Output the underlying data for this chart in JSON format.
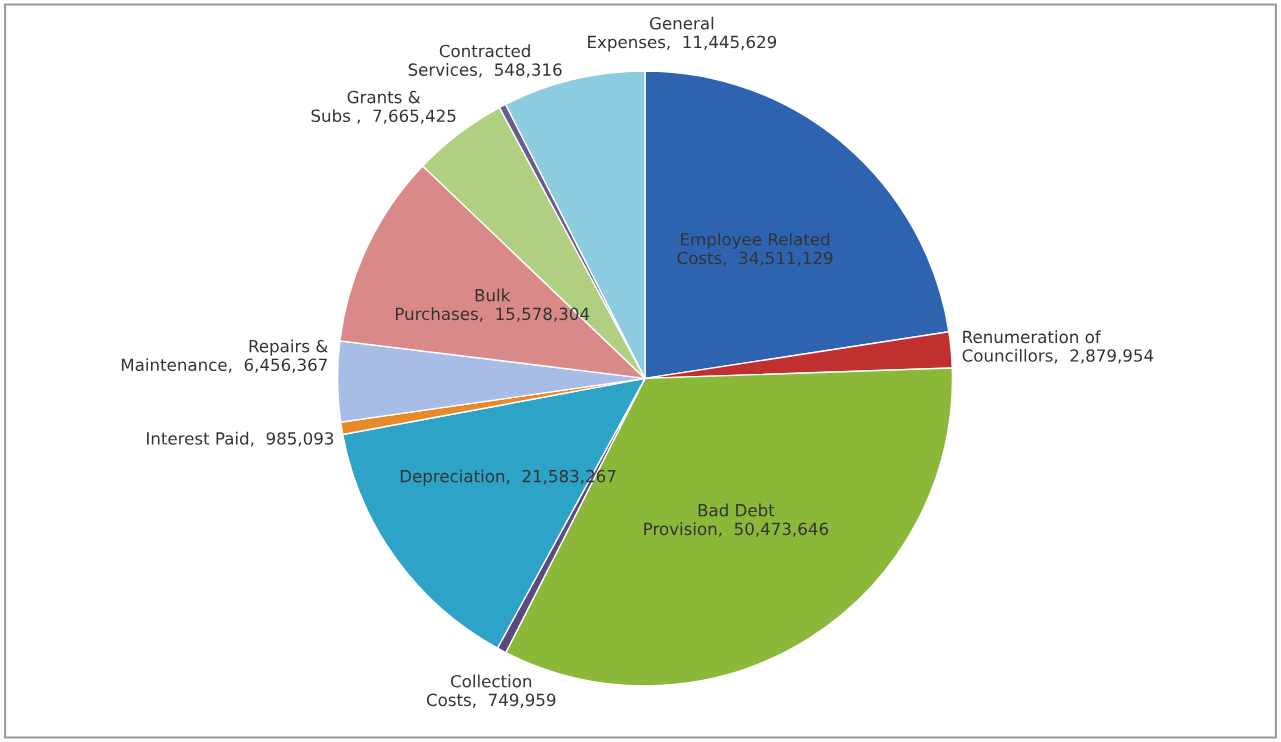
{
  "chart_data": {
    "type": "pie",
    "categories": [
      "Employee Related Costs",
      "Renumeration of Councillors",
      "Bad Debt Provision",
      "Collection Costs",
      "Depreciation",
      "Interest Paid",
      "Repairs & Maintenance",
      "Bulk Purchases",
      "Grants & Subs ",
      "Contracted Services",
      "General Expenses"
    ],
    "values": [
      34511129,
      2879954,
      50473646,
      749959,
      21583267,
      985093,
      6456367,
      15578304,
      7665425,
      548316,
      11445629
    ],
    "colors": [
      "#2e63b0",
      "#c0302e",
      "#8cb83a",
      "#5a4a80",
      "#2ea3c8",
      "#e98a2a",
      "#a8bde6",
      "#d98a88",
      "#b0cf80",
      "#6a5a90",
      "#8ccbe0"
    ],
    "value_labels": [
      "34,511,129",
      "2,879,954",
      "50,473,646",
      "749,959",
      "21,583,267",
      "985,093",
      "6,456,367",
      "15,578,304",
      "7,665,425",
      "548,316",
      "11,445,629"
    ]
  }
}
